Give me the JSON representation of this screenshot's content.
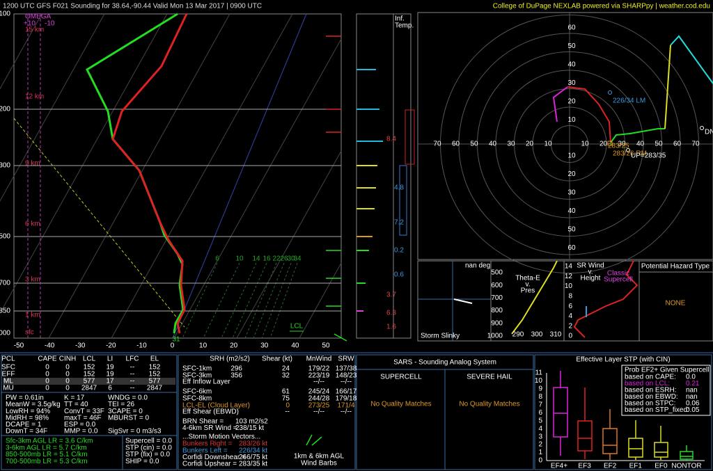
{
  "header": {
    "left": "1200 UTC GFS F021 Sounding for 38.64,-90.44 Valid  Mon 13 Mar 2017 | 0900 UTC",
    "right": "College of DuPage NEXLAB powered via SHARPpy | weather.cod.edu"
  },
  "skewt": {
    "pressures": [
      100,
      200,
      300,
      500,
      700,
      850,
      1000
    ],
    "temps": [
      -50,
      -40,
      -30,
      -20,
      -10,
      0,
      10,
      20,
      30,
      40,
      50
    ],
    "heights": [
      "15 km",
      "12 km",
      "9 km",
      "6 km",
      "3 km",
      "1 km",
      "sfc"
    ],
    "omega": "OMEGA",
    "omega_scale": [
      "+10",
      "-10"
    ],
    "mixing": [
      6,
      10,
      14,
      16,
      22,
      26,
      30,
      34
    ],
    "lcl": "LCL",
    "sfc_value": "31"
  },
  "inferred_temp": {
    "title": [
      "Inf.",
      "Temp."
    ],
    "values": [
      "8.4",
      "4.8",
      "7.2",
      "0.2",
      "0.6",
      "3.7",
      "6.3",
      "1.6"
    ]
  },
  "hodograph": {
    "rings_up": [
      60,
      50,
      40,
      30,
      20,
      10
    ],
    "rings_down": [
      10,
      20,
      30,
      40,
      50,
      60
    ],
    "rings_left": [
      70,
      60,
      50,
      40,
      30,
      20,
      10
    ],
    "rings_right": [
      10,
      20,
      30,
      40,
      50,
      60,
      70
    ],
    "labels": [
      "226/34 LM",
      "283/25",
      "283/26 RM",
      "UP=283/35",
      "DN"
    ]
  },
  "slinky": {
    "angle": "nan deg",
    "title": "Storm Slinky"
  },
  "thetae": {
    "title": [
      "Theta-E",
      "v.",
      "Pres"
    ],
    "pres": [
      500,
      600,
      700,
      800,
      900,
      1000
    ],
    "temps": [
      290,
      300,
      310
    ]
  },
  "srwind": {
    "title": [
      "SR Wind",
      "v.",
      "Height"
    ],
    "ref": [
      "Classic",
      "Supercell"
    ],
    "heights": [
      14,
      12,
      10,
      8,
      6,
      4,
      2,
      0
    ]
  },
  "hazard": {
    "title": "Potential Hazard Type",
    "value": "NONE"
  },
  "parcels": {
    "header": [
      "PCL",
      "CAPE",
      "CINH",
      "LCL",
      "LI",
      "LFC",
      "EL"
    ],
    "rows": [
      [
        "SFC",
        "0",
        "0",
        "152",
        "19",
        "--",
        "152"
      ],
      [
        "EFF",
        "0",
        "0",
        "152",
        "19",
        "--",
        "152"
      ],
      [
        "ML",
        "0",
        "0",
        "577",
        "17",
        "--",
        "577"
      ],
      [
        "MU",
        "0",
        "0",
        "2847",
        "6",
        "--",
        "2847"
      ]
    ]
  },
  "indices": [
    [
      "PW = 0.61in",
      "K = 17",
      "WNDG = 0.0"
    ],
    [
      "MeanW = 3.5g/kg",
      "TT = 40",
      "TEI = 26"
    ],
    [
      "LowRH = 94%",
      "ConvT = 33F",
      "3CAPE = 0"
    ],
    [
      "MidRH = 98%",
      "maxT = 46F",
      "MBURST = 0"
    ],
    [
      "DCAPE = 1",
      "ESP = 0.0"
    ],
    [
      "DownT = 34F",
      "MMP = 0.0",
      "SigSvr = 0 m3/s3"
    ]
  ],
  "lapse_rates": [
    "Sfc-3km AGL LR = 3.6 C/km",
    "3-6km AGL LR = 5.7 C/km",
    "850-500mb LR = 5.1 C/km",
    "700-500mb LR = 5.3 C/km"
  ],
  "composites": [
    "Supercell = 0.0",
    "STP (cin) = 0.0",
    "STP (fix) = 0.0",
    "SHIP = 0.0"
  ],
  "kinematics": {
    "header": [
      "SRH (m2/s2)",
      "Shear (kt)",
      "MnWind",
      "SRW"
    ],
    "rows": [
      [
        "SFC-1km",
        "296",
        "24",
        "179/22",
        "137/38"
      ],
      [
        "SFC-3km",
        "356",
        "32",
        "223/19",
        "148/23"
      ],
      [
        "Eff Inflow Layer",
        null,
        null,
        "--/--",
        "--/--"
      ],
      [
        "SFC-6km",
        null,
        "61",
        "245/24",
        "166/17"
      ],
      [
        "SFC-8km",
        null,
        "75",
        "244/28",
        "179/18"
      ],
      [
        "LCL-EL (Cloud Layer)",
        null,
        "0",
        "273/25",
        "171/4"
      ],
      [
        "Eff Shear (EBWD)",
        null,
        "--",
        "--/--",
        "--/--"
      ]
    ],
    "extra": [
      [
        "BRN Shear =",
        "103 m2/s2"
      ],
      [
        "4-6km SR Wind =",
        "238/15 kt"
      ]
    ],
    "motion_title": "...Storm Motion Vectors...",
    "motion": [
      [
        "Bunkers Right =",
        "283/26 kt"
      ],
      [
        "Bunkers Left =",
        "226/34 kt"
      ],
      [
        "Corfidi Downshear =",
        "266/75 kt"
      ],
      [
        "Corfidi Upshear =",
        "283/35 kt"
      ]
    ],
    "barbs": [
      "1km & 6km AGL",
      "Wind Barbs"
    ]
  },
  "sars": {
    "title": "SARS - Sounding Analog System",
    "supercell": "SUPERCELL",
    "hail": "SEVERE HAIL",
    "supercell_result": "No Quality Matches",
    "hail_result": "No Quality Matches"
  },
  "stp": {
    "title": "Effective Layer STP (with CIN)",
    "prob_title": "Prob EF2+ Given Supercell",
    "prob": [
      [
        "based on CAPE:",
        "0.0"
      ],
      [
        "based on LCL:",
        "0.21"
      ],
      [
        "based on ESRH:",
        "nan"
      ],
      [
        "based on EBWD:",
        "nan"
      ],
      [
        "based on STPC:",
        "0.06"
      ],
      [
        "based on STP_fixed:",
        "0.05"
      ]
    ],
    "yticks": [
      0,
      1,
      2,
      3,
      4,
      5,
      6,
      7,
      8,
      9,
      10,
      11
    ],
    "categories": [
      "EF4+",
      "EF3",
      "EF2",
      "EF1",
      "EF0",
      "NONTOR"
    ]
  }
}
